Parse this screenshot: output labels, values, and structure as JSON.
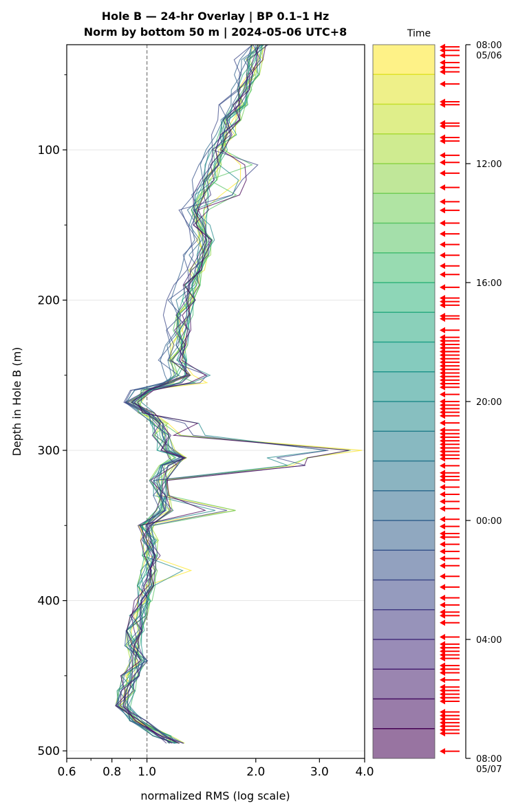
{
  "chart_data": {
    "type": "line",
    "title": "Hole B — 24-hr Overlay  |  BP 0.1–1 Hz",
    "subtitle": "Norm by bottom 50 m  |  2024-05-06 UTC+8",
    "xlabel": "normalized RMS  (log scale)",
    "ylabel": "Depth in Hole B (m)",
    "x_scale": "log",
    "xlim": [
      0.6,
      4.0
    ],
    "ylim": [
      505,
      30
    ],
    "x_ticks": [
      0.6,
      0.8,
      1.0,
      2.0,
      3.0,
      4.0
    ],
    "x_tick_labels": [
      "0.6",
      "0.8",
      "1.0",
      "2.0",
      "3.0",
      "4.0"
    ],
    "y_ticks": [
      100,
      200,
      300,
      400,
      500
    ],
    "y_tick_labels": [
      "100",
      "200",
      "300",
      "400",
      "500"
    ],
    "reference_line_x": 1.0,
    "grid": "horizontal",
    "colormap": "viridis",
    "series_count": 24,
    "depths_m": [
      30,
      40,
      50,
      60,
      70,
      80,
      90,
      100,
      110,
      120,
      130,
      140,
      150,
      160,
      170,
      180,
      190,
      200,
      210,
      220,
      230,
      240,
      250,
      255,
      260,
      268,
      275,
      282,
      290,
      300,
      305,
      310,
      320,
      330,
      340,
      350,
      360,
      370,
      380,
      390,
      400,
      410,
      420,
      430,
      440,
      450,
      460,
      470,
      480,
      490,
      495
    ],
    "base_profile": [
      2.05,
      2.0,
      1.95,
      1.85,
      1.8,
      1.72,
      1.67,
      1.6,
      1.52,
      1.48,
      1.42,
      1.4,
      1.42,
      1.45,
      1.42,
      1.38,
      1.33,
      1.3,
      1.27,
      1.25,
      1.23,
      1.22,
      1.25,
      1.18,
      1.0,
      0.92,
      1.0,
      1.08,
      1.1,
      1.13,
      1.22,
      1.15,
      1.08,
      1.1,
      1.12,
      1.0,
      1.02,
      1.03,
      1.02,
      1.0,
      0.98,
      0.95,
      0.93,
      0.92,
      0.95,
      0.9,
      0.88,
      0.87,
      0.95,
      1.1,
      1.2
    ],
    "spike_events": [
      {
        "depth": 115,
        "value": 2.05
      },
      {
        "depth": 125,
        "value": 1.9
      },
      {
        "depth": 250,
        "value": 1.5
      },
      {
        "depth": 285,
        "value": 1.45
      },
      {
        "depth": 305,
        "value": 4.0
      },
      {
        "depth": 308,
        "value": 2.85
      },
      {
        "depth": 340,
        "value": 1.8
      },
      {
        "depth": 380,
        "value": 1.35
      }
    ],
    "colorbar": {
      "label": "Time",
      "tick_labels": [
        "08:00\n05/06",
        "12:00",
        "16:00",
        "20:00",
        "00:00",
        "04:00",
        "08:00\n05/07"
      ]
    },
    "event_arrow_fractions": [
      0.003,
      0.008,
      0.015,
      0.025,
      0.032,
      0.038,
      0.055,
      0.08,
      0.084,
      0.11,
      0.114,
      0.13,
      0.135,
      0.155,
      0.165,
      0.18,
      0.2,
      0.22,
      0.232,
      0.25,
      0.265,
      0.28,
      0.295,
      0.31,
      0.322,
      0.34,
      0.355,
      0.36,
      0.365,
      0.38,
      0.384,
      0.4,
      0.415,
      0.43,
      0.41,
      0.42,
      0.425,
      0.43,
      0.435,
      0.44,
      0.445,
      0.45,
      0.455,
      0.46,
      0.465,
      0.47,
      0.475,
      0.48,
      0.49,
      0.5,
      0.505,
      0.51,
      0.515,
      0.52,
      0.53,
      0.54,
      0.545,
      0.55,
      0.555,
      0.56,
      0.565,
      0.57,
      0.575,
      0.58,
      0.59,
      0.6,
      0.605,
      0.61,
      0.62,
      0.63,
      0.64,
      0.65,
      0.665,
      0.675,
      0.685,
      0.69,
      0.7,
      0.71,
      0.72,
      0.73,
      0.745,
      0.76,
      0.775,
      0.785,
      0.795,
      0.8,
      0.81,
      0.83,
      0.84,
      0.845,
      0.85,
      0.855,
      0.86,
      0.87,
      0.875,
      0.88,
      0.89,
      0.9,
      0.905,
      0.91,
      0.915,
      0.92,
      0.935,
      0.94,
      0.945,
      0.95,
      0.955,
      0.96,
      0.965,
      0.99
    ],
    "arrow_color": "#ff0000"
  }
}
